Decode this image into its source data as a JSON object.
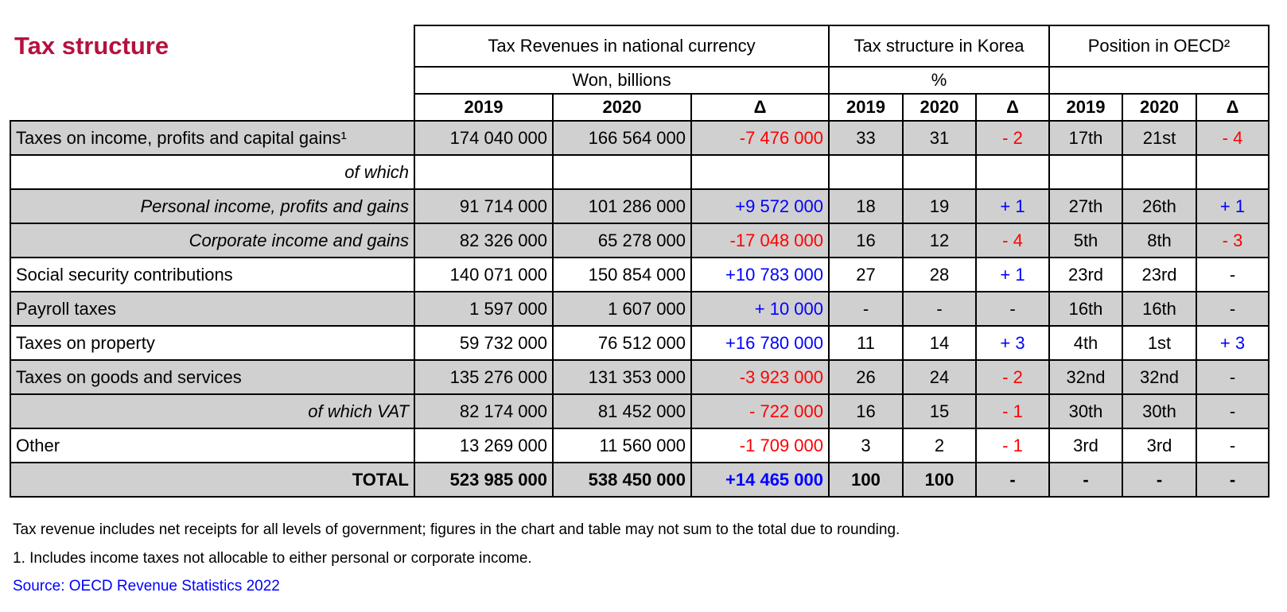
{
  "header": {
    "title": "Tax structure"
  },
  "table": {
    "groups": [
      {
        "label": "Tax Revenues in national currency",
        "columns": [
          "2019",
          "2020",
          "Δ"
        ]
      },
      {
        "label": "Tax structure in Korea",
        "columns": [
          "2019",
          "2020",
          "Δ"
        ]
      },
      {
        "label": "Position in OECD²",
        "columns": [
          "2019",
          "2020",
          "Δ"
        ]
      }
    ],
    "units": [
      "Won, billions",
      "%"
    ],
    "rows": [
      {
        "label": "Taxes on income, profits and capital gains¹",
        "shaded": true,
        "cells": [
          "174 040 000",
          "166 564 000",
          "-7 476 000",
          "33",
          "31",
          "- 2",
          "17th",
          "21st",
          "- 4"
        ],
        "delta_colors": [
          "#ff0000",
          "#ff0000",
          "#ff0000"
        ]
      },
      {
        "label": "of which",
        "style": "sub",
        "shaded": false,
        "cells": [],
        "delta_colors": []
      },
      {
        "label": "Personal income, profits and gains",
        "style": "sub",
        "shaded": true,
        "cells": [
          "91 714 000",
          "101 286 000",
          "+9 572 000",
          "18",
          "19",
          "+ 1",
          "27th",
          "26th",
          "+ 1"
        ],
        "delta_colors": [
          "#0000ff",
          "#0000ff",
          "#0000ff"
        ]
      },
      {
        "label": "Corporate income and gains",
        "style": "sub",
        "shaded": true,
        "cells": [
          "82 326 000",
          "65 278 000",
          "-17 048 000",
          "16",
          "12",
          "- 4",
          "5th",
          "8th",
          "- 3"
        ],
        "delta_colors": [
          "#ff0000",
          "#ff0000",
          "#ff0000"
        ]
      },
      {
        "label": "Social security contributions",
        "shaded": false,
        "cells": [
          "140 071 000",
          "150 854 000",
          "+10 783 000",
          "27",
          "28",
          "+ 1",
          "23rd",
          "23rd",
          "-"
        ],
        "delta_colors": [
          "#0000ff",
          "#0000ff",
          "#000000"
        ]
      },
      {
        "label": "Payroll taxes",
        "shaded": true,
        "cells": [
          "1 597 000",
          "1 607 000",
          "+ 10 000",
          "-",
          "-",
          "-",
          "16th",
          "16th",
          "-"
        ],
        "delta_colors": [
          "#0000ff",
          "#000000",
          "#000000"
        ]
      },
      {
        "label": "Taxes on property",
        "shaded": false,
        "cells": [
          "59 732 000",
          "76 512 000",
          "+16 780 000",
          "11",
          "14",
          "+ 3",
          "4th",
          "1st",
          "+ 3"
        ],
        "delta_colors": [
          "#0000ff",
          "#0000ff",
          "#0000ff"
        ]
      },
      {
        "label": "Taxes on goods and services",
        "shaded": true,
        "cells": [
          "135 276 000",
          "131 353 000",
          "-3 923 000",
          "26",
          "24",
          "- 2",
          "32nd",
          "32nd",
          "-"
        ],
        "delta_colors": [
          "#ff0000",
          "#ff0000",
          "#000000"
        ]
      },
      {
        "label": "of which VAT",
        "style": "sub",
        "shaded": true,
        "cells": [
          "82 174 000",
          "81 452 000",
          "- 722 000",
          "16",
          "15",
          "- 1",
          "30th",
          "30th",
          "-"
        ],
        "delta_colors": [
          "#ff0000",
          "#ff0000",
          "#000000"
        ]
      },
      {
        "label": "Other",
        "shaded": false,
        "cells": [
          "13 269 000",
          "11 560 000",
          "-1 709 000",
          "3",
          "2",
          "- 1",
          "3rd",
          "3rd",
          "-"
        ],
        "delta_colors": [
          "#ff0000",
          "#ff0000",
          "#000000"
        ]
      },
      {
        "label": "TOTAL",
        "style": "total",
        "shaded": true,
        "cells": [
          "523 985 000",
          "538 450 000",
          "+14 465 000",
          "100",
          "100",
          "-",
          "-",
          "-",
          "-"
        ],
        "delta_colors": [
          "#0000ff",
          "#000000",
          "#000000"
        ]
      }
    ]
  },
  "notes": [
    "Tax revenue includes net receipts for all levels of government; figures in the chart and table may not sum to the total due to rounding.",
    "1. Includes income taxes not allocable to either personal or corporate income."
  ],
  "source": {
    "text": "Source: OECD Revenue Statistics 2022",
    "color": "#0000ff"
  }
}
